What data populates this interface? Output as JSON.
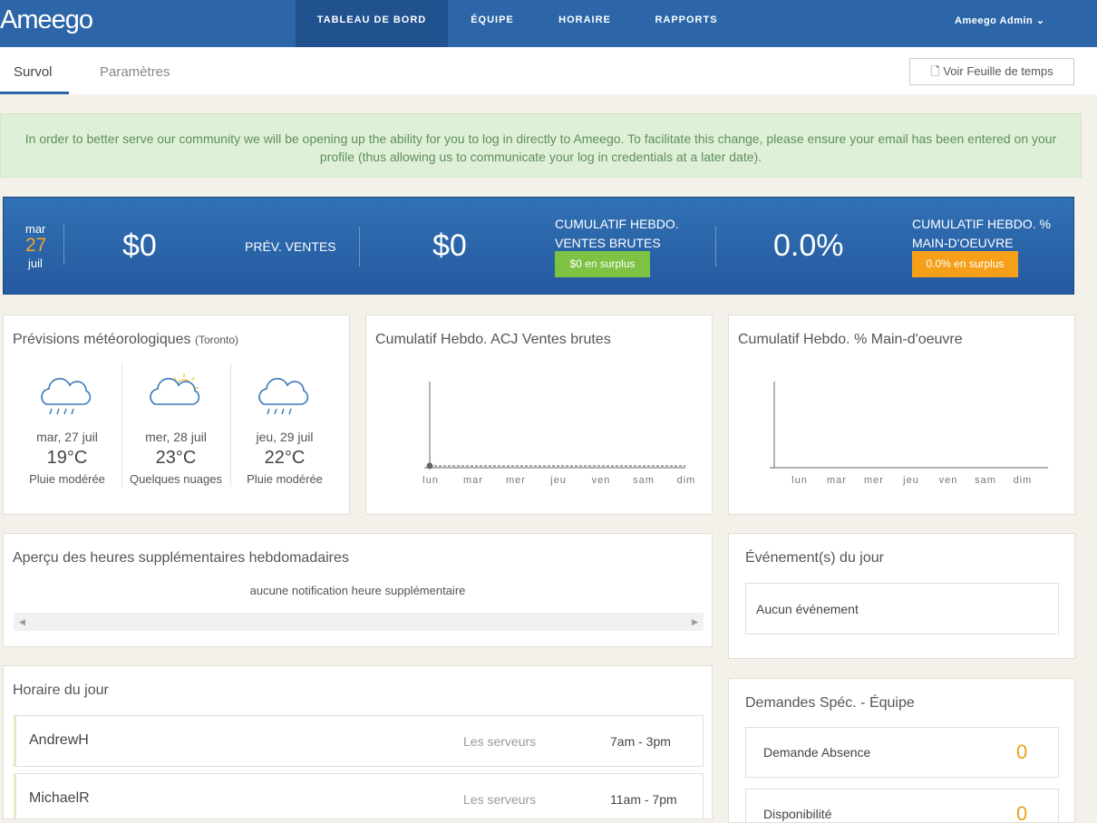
{
  "nav": {
    "logo": "Ameego",
    "items": [
      "TABLEAU DE BORD",
      "ÉQUIPE",
      "HORAIRE",
      "RAPPORTS"
    ],
    "user": "Ameego Admin"
  },
  "tabs": [
    "Survol",
    "Paramètres"
  ],
  "timesheet_button": "Voir Feuille de temps",
  "notice": "In order to better serve our community we will be opening up the ability for you to log in directly to Ameego. To facilitate this change, please ensure your email has been entered on your profile (thus allowing us to communicate your log in credentials at a later date).",
  "summary": {
    "weekday": "mar",
    "day": "27",
    "month": "juil",
    "sales": "$0",
    "sales_label": "PRÉV. VENTES",
    "gross": "$0",
    "gross_label": "CUMULATIF HEBDO. VENTES BRUTES",
    "gross_badge": "$0 en surplus",
    "labor": "0.0%",
    "labor_label": "CUMULATIF HEBDO. % MAIN-D'OEUVRE",
    "labor_badge": "0.0% en surplus"
  },
  "weather": {
    "title": "Prévisions météorologiques",
    "city": "(Toronto)",
    "days": [
      {
        "date": "mar, 27 juil",
        "temp": "19°C",
        "desc": "Pluie modérée"
      },
      {
        "date": "mer, 28 juil",
        "temp": "23°C",
        "desc": "Quelques nuages"
      },
      {
        "date": "jeu, 29 juil",
        "temp": "22°C",
        "desc": "Pluie modérée"
      }
    ]
  },
  "chart_sales": {
    "title": "Cumulatif Hebdo. ACJ Ventes brutes",
    "days": [
      "lun",
      "mar",
      "mer",
      "jeu",
      "ven",
      "sam",
      "dim"
    ]
  },
  "chart_labor": {
    "title": "Cumulatif Hebdo. % Main-d'oeuvre",
    "days": [
      "lun",
      "mar",
      "mer",
      "jeu",
      "ven",
      "sam",
      "dim"
    ]
  },
  "overtime": {
    "title": "Aperçu des heures supplémentaires hebdomadaires",
    "empty": "aucune notification heure supplémentaire"
  },
  "events": {
    "title": "Événement(s) du jour",
    "empty": "Aucun événement"
  },
  "schedule": {
    "title": "Horaire du jour",
    "rows": [
      {
        "name": "AndrewH",
        "role": "Les serveurs",
        "time": "7am - 3pm"
      },
      {
        "name": "MichaelR",
        "role": "Les serveurs",
        "time": "11am - 7pm"
      }
    ]
  },
  "requests": {
    "title": "Demandes Spéc. - Équipe",
    "rows": [
      {
        "label": "Demande Absence",
        "count": "0"
      },
      {
        "label": "Disponibilité",
        "count": "0"
      }
    ]
  }
}
